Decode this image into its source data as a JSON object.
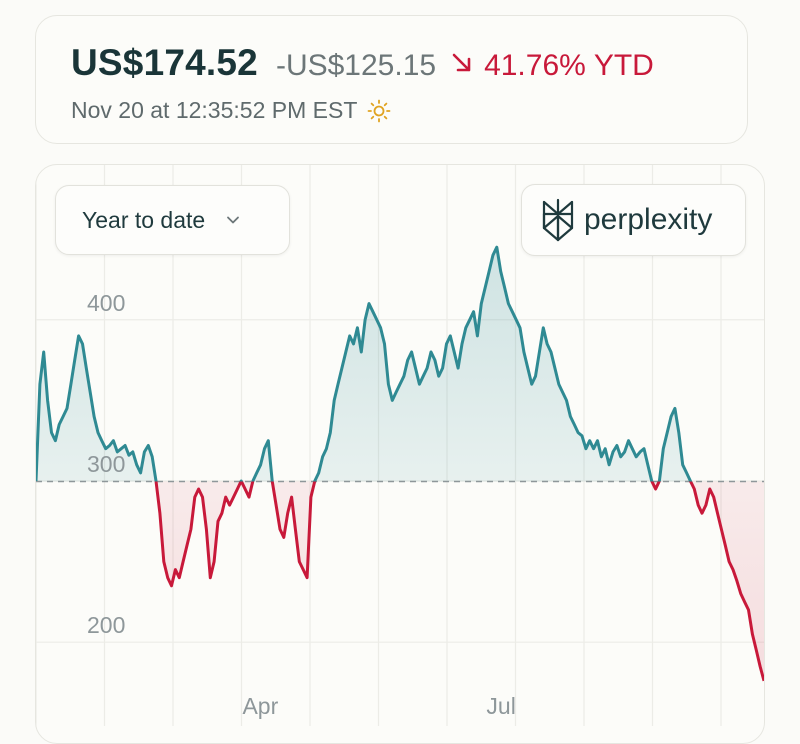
{
  "header": {
    "price": "US$174.52",
    "change": "-US$125.15",
    "change_pct": "41.76%",
    "period": "YTD",
    "timestamp": "Nov 20 at 12:35:52 PM EST",
    "weather_icon": "sun-icon",
    "colors": {
      "up": "#2f8a93",
      "down": "#c8193a"
    }
  },
  "controls": {
    "range_label": "Year to date",
    "brand": "perplexity"
  },
  "chart_data": {
    "type": "line",
    "title": "",
    "xlabel": "",
    "ylabel": "",
    "baseline": 299.67,
    "ylim": [
      148,
      496
    ],
    "y_ticks": [
      200,
      300,
      400
    ],
    "x_ticks": [
      {
        "label": "Apr",
        "index": 59
      },
      {
        "label": "Jul",
        "index": 122
      }
    ],
    "grid": true,
    "series": [
      {
        "values": [
          300,
          360,
          380,
          350,
          330,
          325,
          335,
          340,
          345,
          360,
          375,
          390,
          385,
          370,
          355,
          340,
          330,
          325,
          320,
          322,
          325,
          318,
          320,
          322,
          316,
          318,
          310,
          305,
          318,
          322,
          315,
          300,
          280,
          250,
          240,
          235,
          245,
          240,
          250,
          260,
          270,
          290,
          295,
          290,
          270,
          240,
          250,
          275,
          280,
          290,
          285,
          290,
          295,
          300,
          295,
          290,
          300,
          305,
          310,
          320,
          325,
          300,
          285,
          270,
          265,
          280,
          290,
          270,
          250,
          245,
          240,
          290,
          300,
          305,
          315,
          320,
          330,
          350,
          360,
          370,
          380,
          390,
          385,
          395,
          380,
          400,
          410,
          405,
          400,
          395,
          385,
          360,
          350,
          355,
          360,
          365,
          375,
          380,
          370,
          360,
          365,
          370,
          380,
          375,
          365,
          370,
          385,
          390,
          380,
          370,
          385,
          395,
          400,
          405,
          390,
          410,
          420,
          430,
          440,
          445,
          430,
          420,
          410,
          405,
          400,
          395,
          380,
          370,
          360,
          365,
          380,
          395,
          385,
          380,
          370,
          360,
          355,
          350,
          340,
          335,
          330,
          328,
          320,
          325,
          320,
          325,
          315,
          320,
          310,
          318,
          322,
          315,
          318,
          325,
          320,
          315,
          318,
          320,
          310,
          300,
          295,
          300,
          320,
          330,
          340,
          345,
          330,
          310,
          305,
          300,
          295,
          285,
          280,
          285,
          295,
          290,
          280,
          270,
          260,
          250,
          245,
          238,
          230,
          225,
          220,
          205,
          195,
          185,
          176
        ]
      }
    ]
  }
}
